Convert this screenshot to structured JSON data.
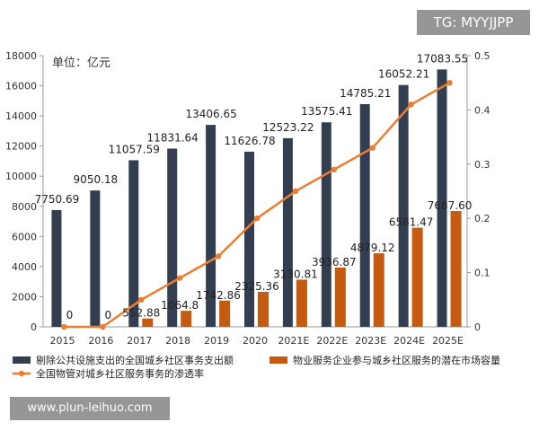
{
  "chart_data": {
    "type": "bar",
    "unit_label": "单位：亿元",
    "categories": [
      "2015",
      "2016",
      "2017",
      "2018",
      "2019",
      "2020",
      "2021E",
      "2022E",
      "2023E",
      "2024E",
      "2025E"
    ],
    "series": [
      {
        "name": "剔除公共设施支出的全国城乡社区事务支出额",
        "type": "bar",
        "axis": "left",
        "color": "#333f50",
        "values": [
          7750.69,
          9050.18,
          11057.59,
          11831.64,
          13406.65,
          11626.78,
          12523.22,
          13575.41,
          14785.21,
          16052.21,
          17083.55
        ],
        "labels": [
          "7750.69",
          "9050.18",
          "11057.59",
          "11831.64",
          "13406.65",
          "11626.78",
          "12523.22",
          "13575.41",
          "14785.21",
          "16052.21",
          "17083.55"
        ]
      },
      {
        "name": "物业服务企业参与城乡社区服务的潜在市场容量",
        "type": "bar",
        "axis": "left",
        "color": "#c55a11",
        "values": [
          0,
          0,
          552.88,
          1064.8,
          1742.86,
          2325.36,
          3130.81,
          3936.87,
          4879.12,
          6581.47,
          7687.6
        ],
        "labels": [
          "0",
          "0",
          "552.88",
          "1064.8",
          "1742.86",
          "2325.36",
          "3130.81",
          "3936.87",
          "4879.12",
          "6581.47",
          "7687.60"
        ]
      },
      {
        "name": "全国物管对城乡社区服务事务的渗透率",
        "type": "line",
        "axis": "right",
        "color": "#ed7d31",
        "values": [
          0,
          0,
          0.05,
          0.09,
          0.13,
          0.2,
          0.25,
          0.29,
          0.33,
          0.41,
          0.45
        ]
      }
    ],
    "y_left": {
      "min": 0,
      "max": 18000,
      "ticks": [
        "0",
        "2000",
        "4000",
        "6000",
        "8000",
        "10000",
        "12000",
        "14000",
        "16000",
        "18000"
      ]
    },
    "y_right": {
      "min": 0,
      "max": 0.5,
      "ticks": [
        "0",
        "0.1",
        "0.2",
        "0.3",
        "0.4",
        "0.5"
      ]
    },
    "legend_position": "bottom",
    "grid": false
  },
  "watermarks": {
    "tg": "TG: MYYJJPP",
    "url": "www.plun-leihuo.com"
  }
}
